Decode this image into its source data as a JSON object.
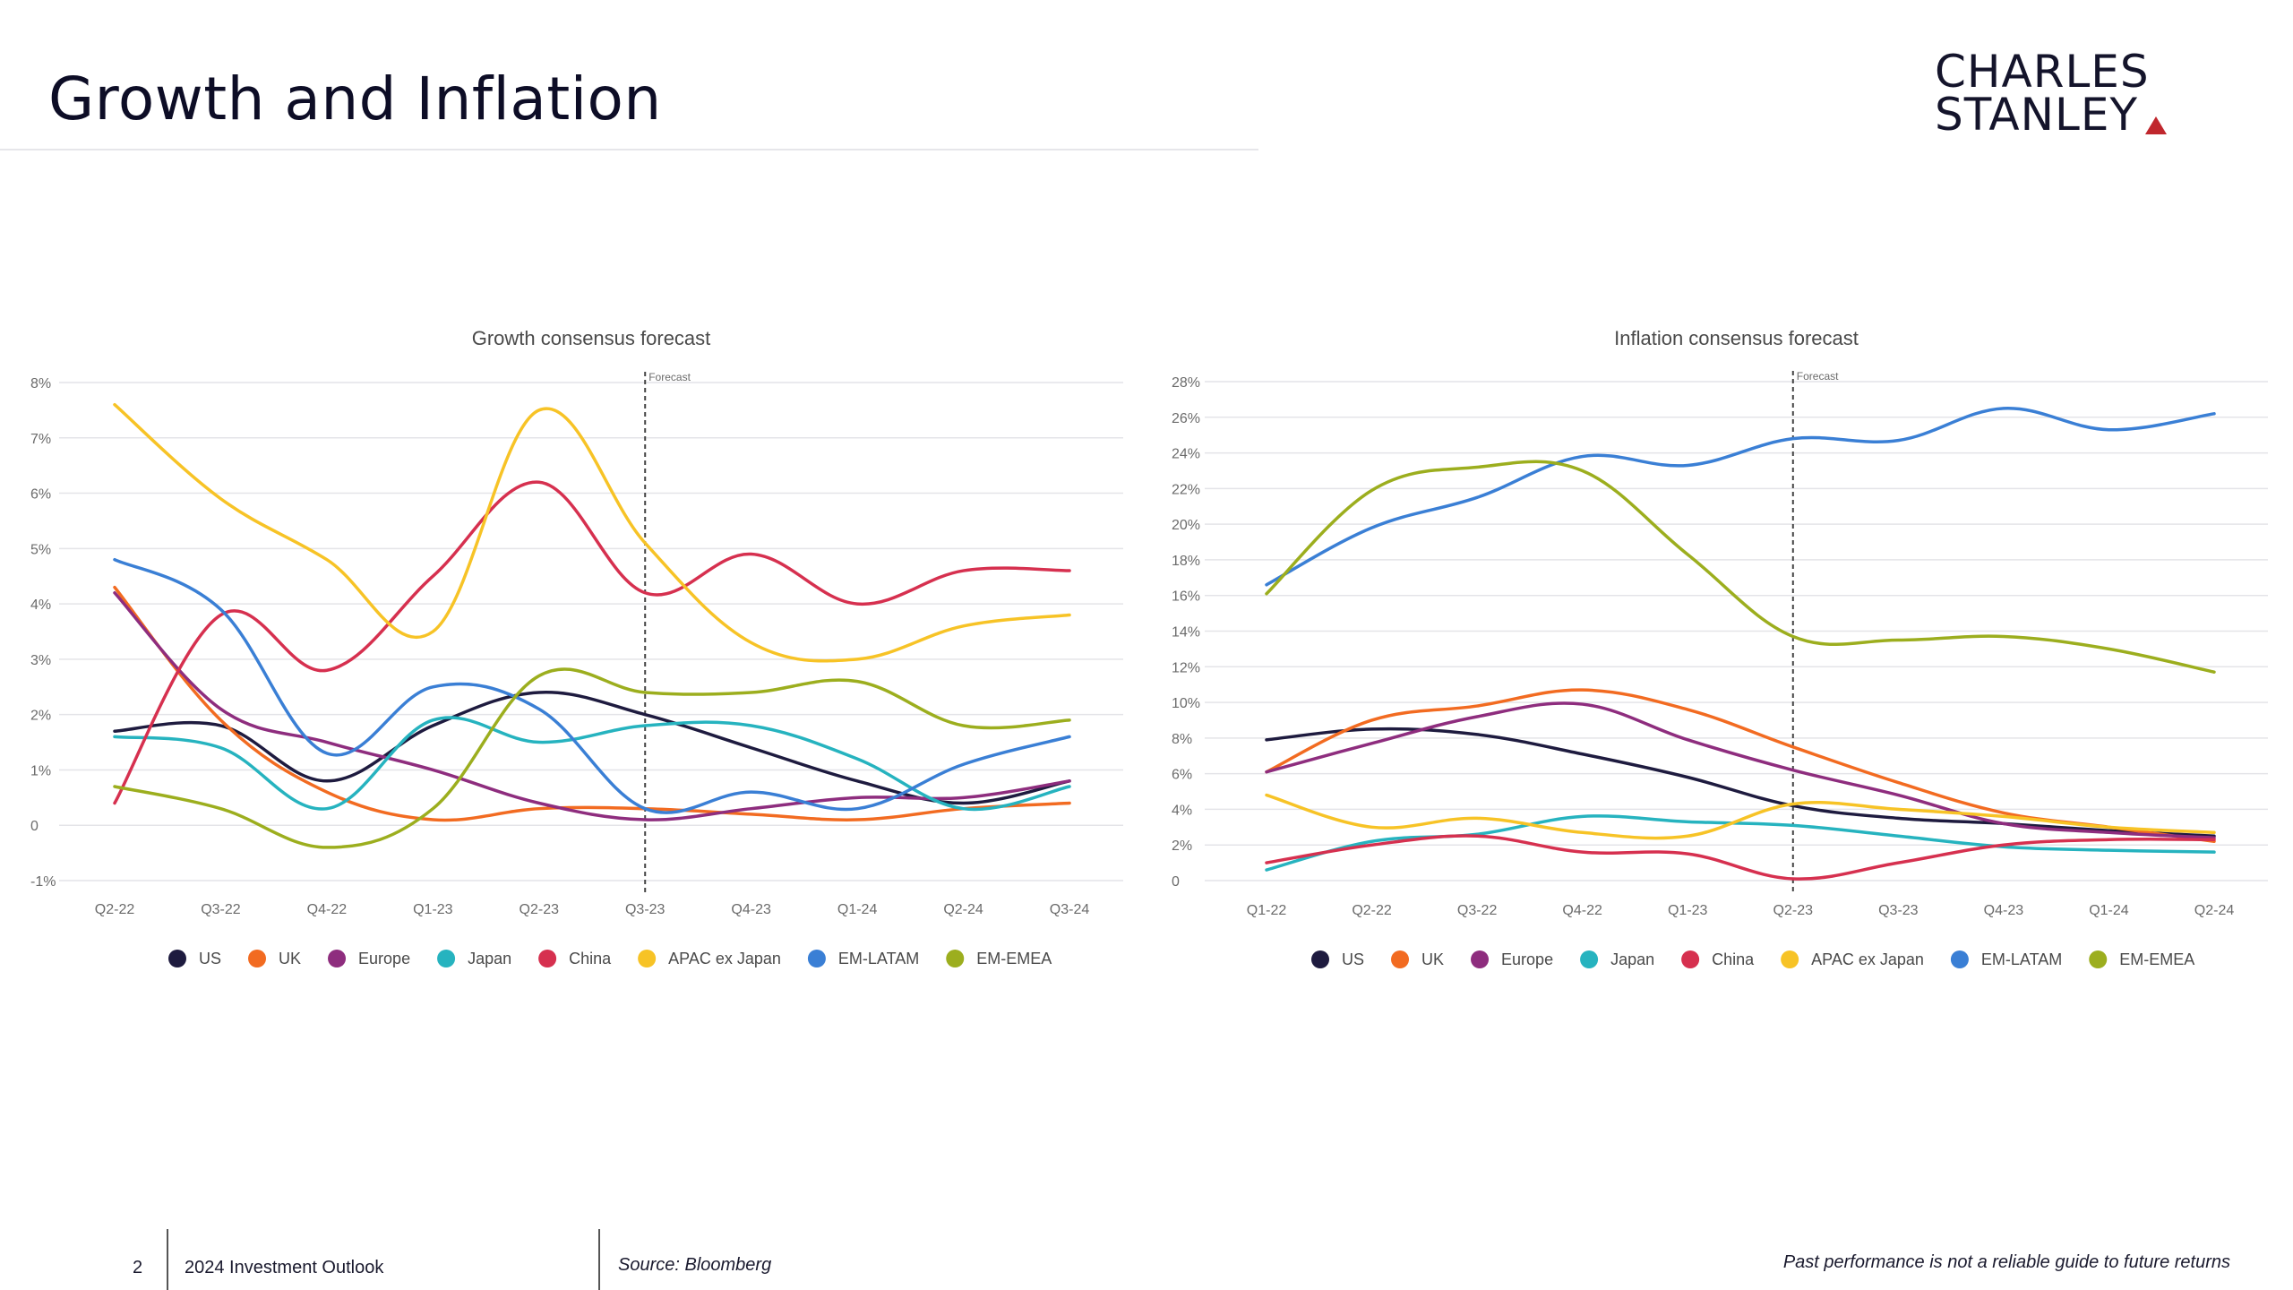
{
  "page": {
    "title": "Growth and Inflation"
  },
  "logo": {
    "line1": "CHARLES",
    "line2": "STANLEY"
  },
  "footer": {
    "page_number": "2",
    "document_title": "2024 Investment Outlook",
    "source": "Source: Bloomberg",
    "disclaimer": "Past performance is not a reliable guide to future returns"
  },
  "colors": {
    "US": "#1e1b3f",
    "UK": "#f26b21",
    "Europe": "#8e2d7e",
    "Japan": "#26b3bf",
    "China": "#d6304f",
    "APAC ex Japan": "#f7c326",
    "EM-LATAM": "#3a7fd5",
    "EM-EMEA": "#9cae1e"
  },
  "chart_data": [
    {
      "type": "line",
      "title": "Growth consensus forecast",
      "forecast_label": "Forecast",
      "forecast_start": "Q3-23",
      "x": [
        "Q2-22",
        "Q3-22",
        "Q4-22",
        "Q1-23",
        "Q2-23",
        "Q3-23",
        "Q4-23",
        "Q1-24",
        "Q2-24",
        "Q3-24"
      ],
      "yticks": [
        "-1%",
        "0",
        "1%",
        "2%",
        "3%",
        "4%",
        "5%",
        "6%",
        "7%",
        "8%"
      ],
      "ylim": [
        -1,
        8
      ],
      "unit": "%",
      "grid": true,
      "legend_position": "bottom",
      "series": [
        {
          "name": "US",
          "values": [
            1.7,
            1.8,
            0.8,
            1.8,
            2.4,
            2.0,
            1.4,
            0.8,
            0.4,
            0.8
          ]
        },
        {
          "name": "UK",
          "values": [
            4.3,
            1.9,
            0.6,
            0.1,
            0.3,
            0.3,
            0.2,
            0.1,
            0.3,
            0.4
          ]
        },
        {
          "name": "Europe",
          "values": [
            4.2,
            2.1,
            1.5,
            1.0,
            0.4,
            0.1,
            0.3,
            0.5,
            0.5,
            0.8
          ]
        },
        {
          "name": "Japan",
          "values": [
            1.6,
            1.4,
            0.3,
            1.9,
            1.5,
            1.8,
            1.8,
            1.2,
            0.3,
            0.7
          ]
        },
        {
          "name": "China",
          "values": [
            0.4,
            3.8,
            2.8,
            4.5,
            6.2,
            4.2,
            4.9,
            4.0,
            4.6,
            4.6
          ]
        },
        {
          "name": "APAC ex Japan",
          "values": [
            7.6,
            5.9,
            4.8,
            3.5,
            7.5,
            5.1,
            3.3,
            3.0,
            3.6,
            3.8
          ]
        },
        {
          "name": "EM-LATAM",
          "values": [
            4.8,
            3.9,
            1.3,
            2.5,
            2.1,
            0.3,
            0.6,
            0.3,
            1.1,
            1.6
          ]
        },
        {
          "name": "EM-EMEA",
          "values": [
            0.7,
            0.3,
            -0.4,
            0.3,
            2.7,
            2.4,
            2.4,
            2.6,
            1.8,
            1.9
          ]
        }
      ]
    },
    {
      "type": "line",
      "title": "Inflation consensus forecast",
      "forecast_label": "Forecast",
      "forecast_start": "Q2-23",
      "x": [
        "Q1-22",
        "Q2-22",
        "Q3-22",
        "Q4-22",
        "Q1-23",
        "Q2-23",
        "Q3-23",
        "Q4-23",
        "Q1-24",
        "Q2-24"
      ],
      "yticks": [
        "0",
        "2%",
        "4%",
        "6%",
        "8%",
        "10%",
        "12%",
        "14%",
        "16%",
        "18%",
        "20%",
        "22%",
        "24%",
        "26%",
        "28%"
      ],
      "ylim": [
        0,
        28
      ],
      "unit": "%",
      "grid": true,
      "legend_position": "bottom",
      "series": [
        {
          "name": "US",
          "values": [
            7.9,
            8.5,
            8.2,
            7.1,
            5.8,
            4.2,
            3.5,
            3.2,
            2.8,
            2.5
          ]
        },
        {
          "name": "UK",
          "values": [
            6.1,
            9.0,
            9.8,
            10.7,
            9.6,
            7.5,
            5.5,
            3.8,
            3.0,
            2.2
          ]
        },
        {
          "name": "Europe",
          "values": [
            6.1,
            7.7,
            9.2,
            9.9,
            7.9,
            6.2,
            4.8,
            3.2,
            2.7,
            2.4
          ]
        },
        {
          "name": "Japan",
          "values": [
            0.6,
            2.2,
            2.6,
            3.6,
            3.3,
            3.1,
            2.5,
            1.9,
            1.7,
            1.6
          ]
        },
        {
          "name": "China",
          "values": [
            1.0,
            2.0,
            2.5,
            1.6,
            1.5,
            0.1,
            1.0,
            2.0,
            2.3,
            2.3
          ]
        },
        {
          "name": "APAC ex Japan",
          "values": [
            4.8,
            3.0,
            3.5,
            2.7,
            2.5,
            4.3,
            4.0,
            3.6,
            3.0,
            2.7
          ]
        },
        {
          "name": "EM-LATAM",
          "values": [
            16.6,
            19.8,
            21.5,
            23.8,
            23.3,
            24.8,
            24.7,
            26.5,
            25.3,
            26.2
          ]
        },
        {
          "name": "EM-EMEA",
          "values": [
            16.1,
            21.9,
            23.2,
            23.0,
            18.3,
            13.7,
            13.5,
            13.7,
            13.0,
            11.7
          ]
        }
      ]
    }
  ]
}
